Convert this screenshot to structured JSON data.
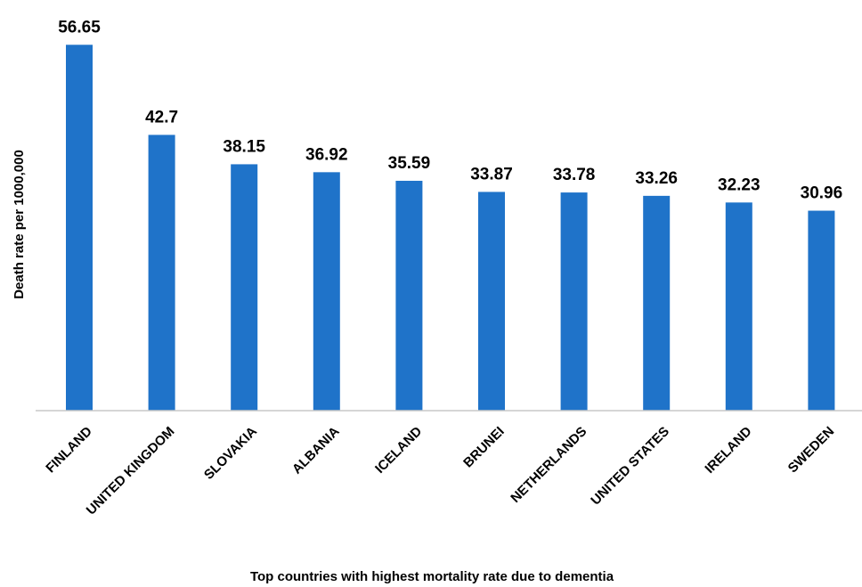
{
  "chart_data": {
    "type": "bar",
    "categories": [
      "FINLAND",
      "UNITED KINGDOM",
      "SLOVAKIA",
      "ALBANIA",
      "ICELAND",
      "BRUNEI",
      "NETHERLANDS",
      "UNITED STATES",
      "IRELAND",
      "SWEDEN"
    ],
    "values": [
      56.65,
      42.7,
      38.15,
      36.92,
      35.59,
      33.87,
      33.78,
      33.26,
      32.23,
      30.96
    ],
    "value_labels": [
      "56.65",
      "42.7",
      "38.15",
      "36.92",
      "35.59",
      "33.87",
      "33.78",
      "33.26",
      "32.23",
      "30.96"
    ],
    "title": "",
    "xlabel": "Top countries with highest mortality rate due to dementia",
    "ylabel": "Death rate per 1000,000",
    "ylim": [
      0,
      60
    ],
    "grid": false,
    "legend": "none",
    "bar_color": "#1F73C9"
  }
}
